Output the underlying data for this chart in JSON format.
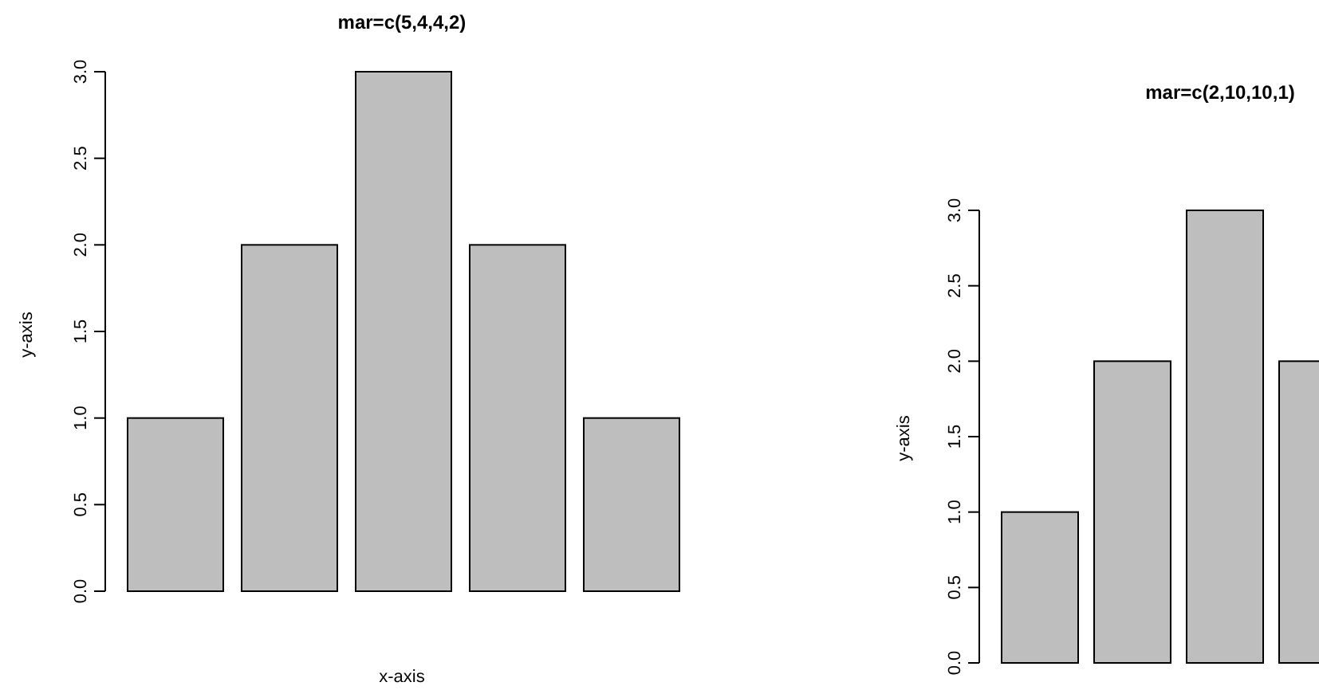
{
  "chart_data": [
    {
      "type": "bar",
      "title": "mar=c(5,4,4,2)",
      "xlabel": "x-axis",
      "ylabel": "y-axis",
      "categories": [
        null,
        null,
        null,
        null,
        null
      ],
      "values": [
        1,
        2,
        3,
        2,
        1
      ],
      "color": "#bebebe",
      "ylim": [
        0,
        3
      ],
      "yticks": [
        {
          "value": 0,
          "label": "0.0"
        },
        {
          "value": 0.5,
          "label": "0.5"
        },
        {
          "value": 1,
          "label": "1.0"
        },
        {
          "value": 1.5,
          "label": "1.5"
        },
        {
          "value": 2,
          "label": "2.0"
        },
        {
          "value": 2.5,
          "label": "2.5"
        },
        {
          "value": 3,
          "label": "3.0"
        }
      ]
    },
    {
      "type": "bar",
      "title": "mar=c(2,10,10,1)",
      "ylabel": "y-axis",
      "categories": [
        null,
        null,
        null,
        null
      ],
      "values": [
        1,
        2,
        3,
        2
      ],
      "color": "#bebebe",
      "ylim": [
        0,
        3
      ],
      "yticks": [
        {
          "value": 0,
          "label": "0.0"
        },
        {
          "value": 0.5,
          "label": "0.5"
        },
        {
          "value": 1,
          "label": "1.0"
        },
        {
          "value": 1.5,
          "label": "1.5"
        },
        {
          "value": 2,
          "label": "2.0"
        },
        {
          "value": 2.5,
          "label": "2.5"
        },
        {
          "value": 3,
          "label": "3.0"
        }
      ]
    }
  ]
}
